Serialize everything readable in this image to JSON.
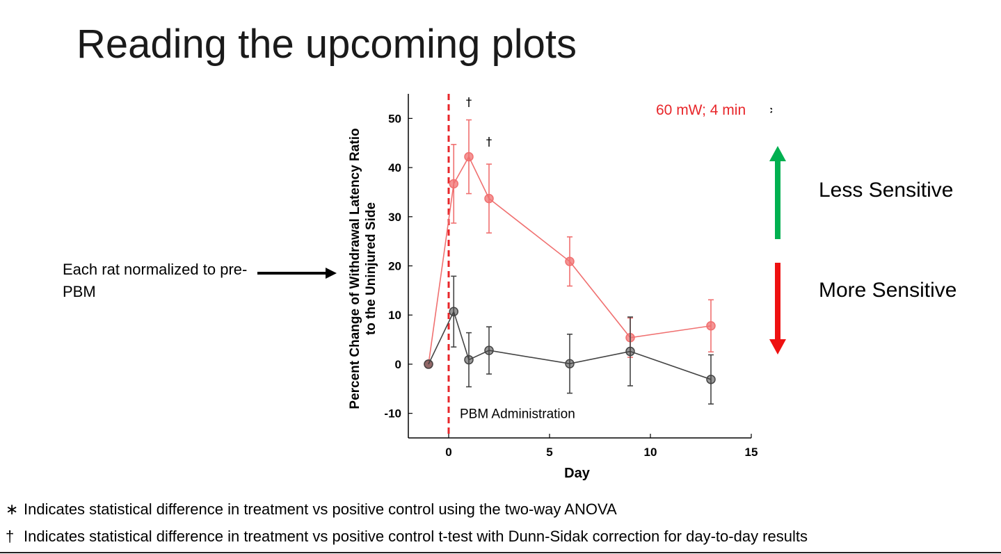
{
  "slide": {
    "title": "Reading the upcoming plots",
    "side_note": "Each rat normalized to pre-PBM",
    "less_sensitive": "Less Sensitive",
    "more_sensitive": "More Sensitive",
    "colors": {
      "up_arrow": "#00b050",
      "down_arrow": "#ee1111",
      "side_arrow": "#000000"
    }
  },
  "footnotes": [
    {
      "symbol": "∗",
      "text": "Indicates statistical difference in treatment vs positive control using the two-way ANOVA"
    },
    {
      "symbol": "†",
      "text": "Indicates statistical difference in treatment vs positive control t-test with Dunn-Sidak correction for day-to-day results"
    }
  ],
  "chart_data": {
    "type": "line",
    "xlabel": "Day",
    "ylabel": "Percent Change of Withdrawal Latency Ratio to the Uninjured Side",
    "xlim": [
      -2,
      15
    ],
    "ylim": [
      -15,
      55
    ],
    "xticks": [
      0,
      5,
      10,
      15
    ],
    "yticks": [
      -10,
      0,
      10,
      20,
      30,
      40,
      50
    ],
    "grid": false,
    "treatment_label": "60 mW; 4 min",
    "treatment_marker": "∗",
    "event_line": {
      "x": 0,
      "label": "PBM Administration",
      "color": "#e8262a"
    },
    "series": [
      {
        "color": "#f07070",
        "x": [
          -1,
          0.25,
          1,
          2,
          6,
          9,
          13
        ],
        "y": [
          0,
          36.7,
          42.2,
          33.7,
          20.9,
          5.4,
          7.8
        ],
        "err": [
          0,
          8,
          7.5,
          7,
          5,
          4,
          5.3
        ]
      },
      {
        "color": "#444444",
        "x": [
          -1,
          0.25,
          1,
          2,
          6,
          9,
          13
        ],
        "y": [
          0,
          10.7,
          0.9,
          2.8,
          0.1,
          2.6,
          -3.1
        ],
        "err": [
          0,
          7.2,
          5.5,
          4.8,
          6,
          7,
          5
        ]
      }
    ],
    "annotations": [
      {
        "text": "†",
        "x": 1,
        "y": 52.5
      },
      {
        "text": "†",
        "x": 2,
        "y": 44.5
      }
    ]
  }
}
